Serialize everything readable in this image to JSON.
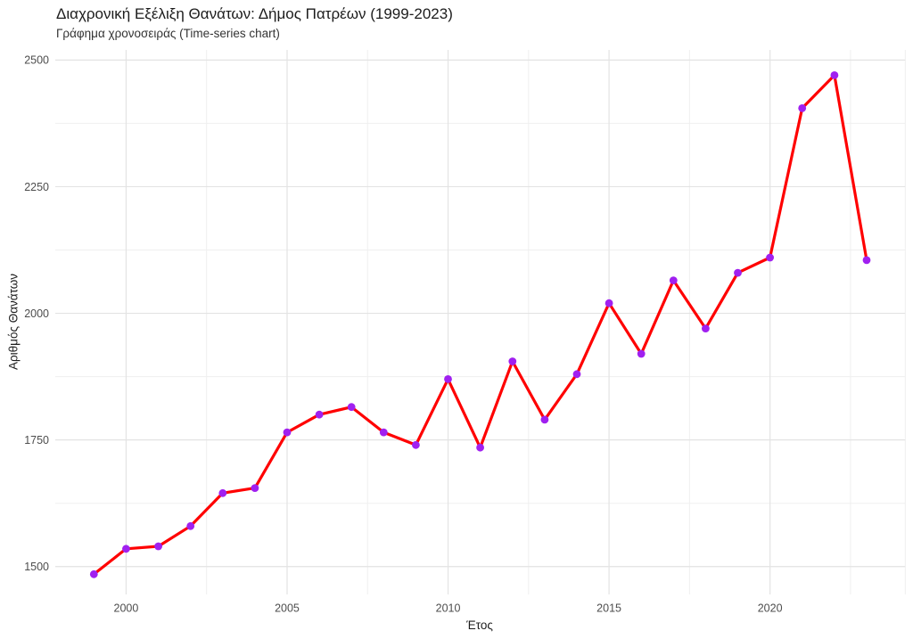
{
  "chart_data": {
    "type": "line",
    "title": "Διαχρονική Εξέλιξη Θανάτων: Δήμος Πατρέων (1999-2023)",
    "subtitle": "Γράφημα χρονοσειράς (Time-series chart)",
    "xlabel": "Έτος",
    "ylabel": "Αριθμός Θανάτων",
    "x": [
      1999,
      2000,
      2001,
      2002,
      2003,
      2004,
      2005,
      2006,
      2007,
      2008,
      2009,
      2010,
      2011,
      2012,
      2013,
      2014,
      2015,
      2016,
      2017,
      2018,
      2019,
      2020,
      2021,
      2022,
      2023
    ],
    "values": [
      1485,
      1535,
      1540,
      1580,
      1645,
      1655,
      1765,
      1800,
      1815,
      1765,
      1740,
      1870,
      1735,
      1905,
      1790,
      1880,
      2020,
      1920,
      2065,
      1970,
      2080,
      2110,
      2405,
      2470,
      2105
    ],
    "x_ticks": [
      2000,
      2005,
      2010,
      2015,
      2020
    ],
    "y_ticks": [
      1500,
      1750,
      2000,
      2250,
      2500
    ],
    "x_minor_ticks": [
      2002.5,
      2007.5,
      2012.5,
      2017.5,
      2022.5
    ],
    "y_minor_ticks": [
      1625,
      1875,
      2125,
      2375
    ],
    "xlim": [
      1997.8,
      2024.2
    ],
    "ylim": [
      1445,
      2520
    ],
    "grid": true,
    "legend": "none",
    "style": {
      "line_color": "#FF0000",
      "point_color": "#A020F0",
      "grid_major_color": "#E3E3E3",
      "grid_minor_color": "#EFEFEF",
      "tick_label_color": "#4D4D4D",
      "title_color": "#1C1C1C",
      "background": "#FFFFFF"
    }
  }
}
